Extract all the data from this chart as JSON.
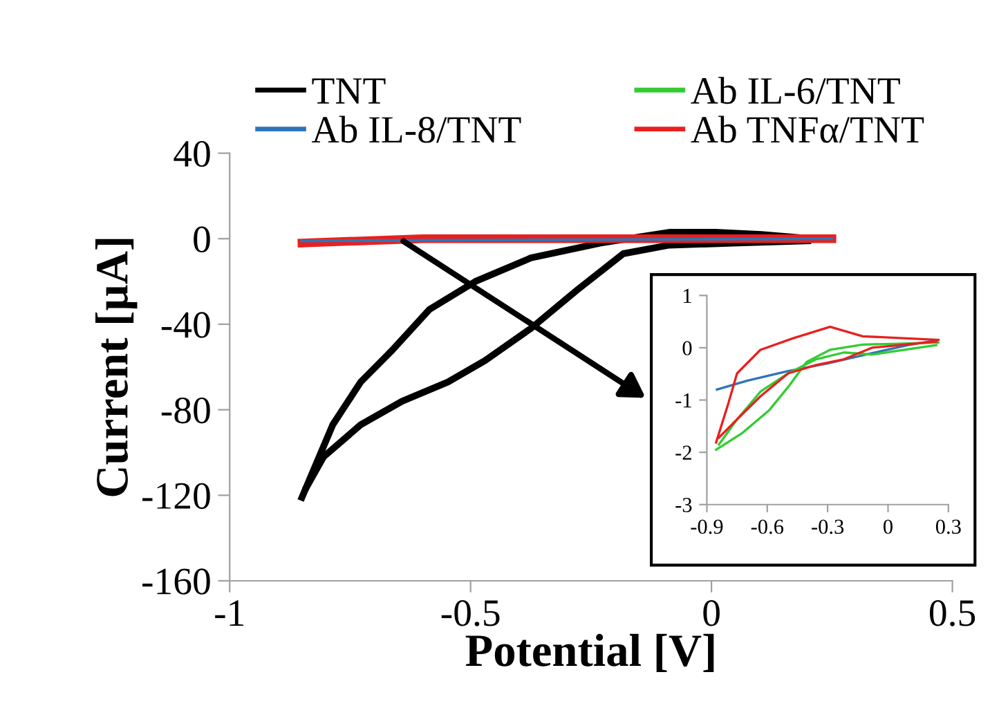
{
  "chart_data": [
    {
      "type": "line",
      "xlabel": "Potential [V]",
      "ylabel": "Current [µA]",
      "xlim": [
        -1,
        0.5
      ],
      "ylim": [
        -160,
        40
      ],
      "xticks": [
        -1,
        -0.5,
        0,
        0.5
      ],
      "yticks": [
        -160,
        -120,
        -80,
        -40,
        0,
        40
      ],
      "legend": "top",
      "marker": "none",
      "line_style": "solid",
      "series": [
        {
          "name": "TNT",
          "color": "#000000",
          "x": [
            -0.85,
            -0.786,
            -0.728,
            -0.662,
            -0.585,
            -0.49,
            -0.375,
            -0.23,
            -0.088,
            0.008,
            0.103,
            0.208
          ],
          "values": [
            -121,
            -87,
            -67,
            -52,
            -33,
            -20,
            -9,
            -2,
            3,
            3,
            2,
            0
          ]
        },
        {
          "color": "#000000",
          "x": [
            -0.84,
            -0.805,
            -0.728,
            -0.642,
            -0.547,
            -0.47,
            -0.375,
            -0.279,
            -0.183,
            -0.088,
            0.055,
            0.2
          ],
          "values": [
            -116,
            -102,
            -87,
            -76,
            -67,
            -57,
            -42,
            -24,
            -7,
            -3,
            -2,
            -1
          ]
        },
        {
          "name": "Ab IL-8/TNT",
          "color": "#2e75b6",
          "x": [
            -0.85,
            0.25
          ],
          "values": [
            -1,
            0
          ]
        },
        {
          "name": "Ab IL-6/TNT",
          "color": "#33cc33"
        },
        {
          "name": "Ab TNFα/TNT",
          "color": "#e8201e",
          "x": [
            -0.85,
            -0.6,
            0.25
          ],
          "values": [
            -2,
            0,
            0
          ]
        }
      ]
    },
    {
      "type": "line",
      "xlim": [
        -0.9,
        0.3
      ],
      "ylim": [
        -3,
        1
      ],
      "xticks": [
        -0.9,
        -0.6,
        -0.3,
        0,
        0.3
      ],
      "yticks": [
        -3,
        -2,
        -1,
        0,
        1
      ],
      "marker": "none",
      "line_style": "solid",
      "series": [
        {
          "color": "#2e75b6",
          "x": [
            -0.85,
            -0.7,
            -0.5,
            -0.3,
            -0.1,
            0.1,
            0.25
          ],
          "values": [
            -0.8,
            -0.63,
            -0.45,
            -0.3,
            -0.12,
            0.05,
            0.15
          ]
        },
        {
          "color": "#33cc33",
          "x": [
            -0.854,
            -0.727,
            -0.589,
            -0.496,
            -0.404,
            -0.288,
            -0.126,
            0.25
          ],
          "values": [
            -1.95,
            -1.64,
            -1.19,
            -0.75,
            -0.27,
            -0.04,
            0.06,
            0.1
          ]
        },
        {
          "color": "#33cc33",
          "x": [
            -0.84,
            -0.75,
            -0.634,
            -0.496,
            -0.357,
            -0.219,
            -0.08,
            0.24
          ],
          "values": [
            -1.85,
            -1.37,
            -0.84,
            -0.49,
            -0.22,
            -0.09,
            -0.13,
            0.05
          ]
        },
        {
          "color": "#e8201e",
          "x": [
            -0.854,
            -0.796,
            -0.75,
            -0.634,
            -0.473,
            -0.288,
            -0.126,
            0.25
          ],
          "values": [
            -1.81,
            -1.1,
            -0.49,
            -0.04,
            0.18,
            0.4,
            0.22,
            0.15
          ]
        },
        {
          "color": "#e8201e",
          "x": [
            -0.84,
            -0.75,
            -0.634,
            -0.496,
            -0.357,
            -0.219,
            -0.08,
            0.24
          ],
          "values": [
            -1.72,
            -1.37,
            -0.93,
            -0.49,
            -0.33,
            -0.22,
            0.0,
            0.12
          ]
        }
      ]
    }
  ]
}
